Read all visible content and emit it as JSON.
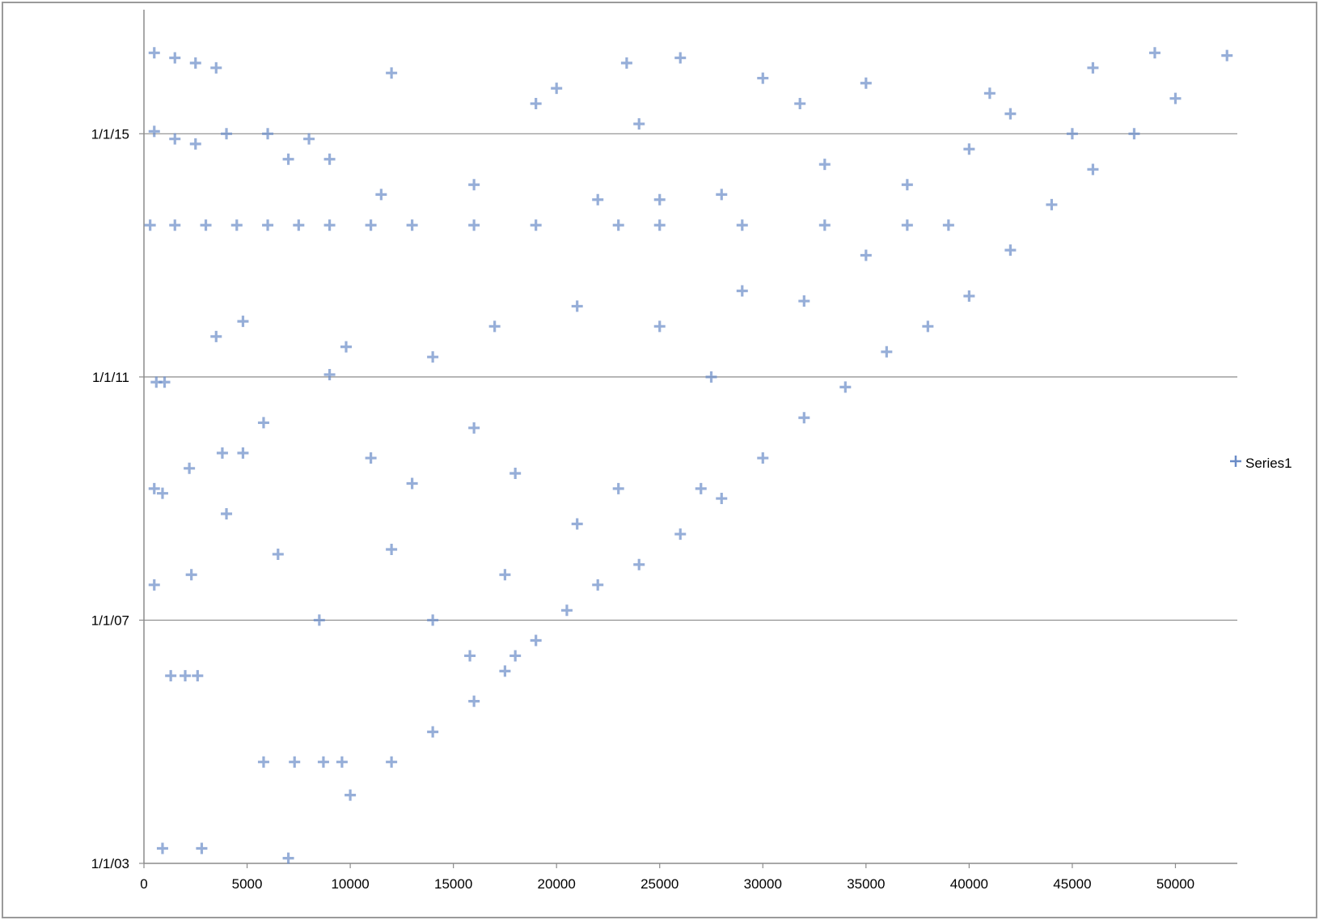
{
  "chart_data": {
    "type": "scatter",
    "title": "",
    "xlabel": "",
    "ylabel": "",
    "x_range": [
      0,
      53000
    ],
    "y_range": [
      "1/1/03",
      "9/1/16"
    ],
    "x_ticks": [
      0,
      5000,
      10000,
      15000,
      20000,
      25000,
      30000,
      35000,
      40000,
      45000,
      50000
    ],
    "x_tick_labels": [
      "0",
      "5000",
      "10000",
      "15000",
      "20000",
      "25000",
      "30000",
      "35000",
      "40000",
      "45000",
      "50000"
    ],
    "y_ticks": [
      "1/1/03",
      "1/1/07",
      "1/1/11",
      "1/1/15"
    ],
    "y_tick_labels": [
      "1/1/03",
      "1/1/07",
      "1/1/11",
      "1/1/15"
    ],
    "gridlines": "horizontal",
    "legend_position": "right",
    "marker": "plus",
    "series": [
      {
        "name": "Series1",
        "color": "#6a8cc7",
        "points": [
          [
            10000,
            "2/15/04"
          ],
          [
            12000,
            "9/1/04"
          ],
          [
            14000,
            "3/1/05"
          ],
          [
            16000,
            "9/1/05"
          ],
          [
            17500,
            "3/1/06"
          ],
          [
            19000,
            "9/1/06"
          ],
          [
            20500,
            "3/1/07"
          ],
          [
            22000,
            "8/1/07"
          ],
          [
            24000,
            "12/1/07"
          ],
          [
            26000,
            "6/1/08"
          ],
          [
            28000,
            "1/1/09"
          ],
          [
            30000,
            "9/1/09"
          ],
          [
            32000,
            "5/1/10"
          ],
          [
            34000,
            "11/1/10"
          ],
          [
            36000,
            "6/1/11"
          ],
          [
            38000,
            "11/1/11"
          ],
          [
            40000,
            "5/1/12"
          ],
          [
            42000,
            "2/1/13"
          ],
          [
            44000,
            "11/1/13"
          ],
          [
            46000,
            "6/1/14"
          ],
          [
            48000,
            "1/1/15"
          ],
          [
            50000,
            "8/1/15"
          ],
          [
            52500,
            "4/15/16"
          ],
          [
            500,
            "5/1/16"
          ],
          [
            1500,
            "4/1/16"
          ],
          [
            2500,
            "3/1/16"
          ],
          [
            3500,
            "2/1/16"
          ],
          [
            500,
            "1/15/15"
          ],
          [
            1500,
            "12/1/14"
          ],
          [
            2500,
            "11/1/14"
          ],
          [
            4000,
            "1/1/15"
          ],
          [
            6000,
            "1/1/15"
          ],
          [
            8000,
            "12/1/14"
          ],
          [
            9000,
            "8/1/14"
          ],
          [
            7000,
            "8/1/14"
          ],
          [
            300,
            "7/1/13"
          ],
          [
            1500,
            "7/1/13"
          ],
          [
            3000,
            "7/1/13"
          ],
          [
            4500,
            "7/1/13"
          ],
          [
            6000,
            "7/1/13"
          ],
          [
            7500,
            "7/1/13"
          ],
          [
            9000,
            "7/1/13"
          ],
          [
            11000,
            "7/1/13"
          ],
          [
            13000,
            "7/1/13"
          ],
          [
            16000,
            "7/1/13"
          ],
          [
            19000,
            "7/1/13"
          ],
          [
            23000,
            "7/1/13"
          ],
          [
            25000,
            "7/1/13"
          ],
          [
            29000,
            "7/1/13"
          ],
          [
            33000,
            "7/1/13"
          ],
          [
            37000,
            "7/1/13"
          ],
          [
            39000,
            "7/1/13"
          ],
          [
            9000,
            "1/15/11"
          ],
          [
            9800,
            "7/1/11"
          ],
          [
            500,
            "3/1/09"
          ],
          [
            900,
            "2/1/09"
          ],
          [
            2200,
            "7/1/09"
          ],
          [
            3800,
            "10/1/09"
          ],
          [
            4800,
            "10/1/09"
          ],
          [
            600,
            "12/1/10"
          ],
          [
            1000,
            "12/1/10"
          ],
          [
            2300,
            "10/1/07"
          ],
          [
            500,
            "8/1/07"
          ],
          [
            4000,
            "10/1/08"
          ],
          [
            1300,
            "2/1/06"
          ],
          [
            2000,
            "2/1/06"
          ],
          [
            2600,
            "2/1/06"
          ],
          [
            5800,
            "9/1/04"
          ],
          [
            7300,
            "9/1/04"
          ],
          [
            8700,
            "9/1/04"
          ],
          [
            9600,
            "9/1/04"
          ],
          [
            900,
            "4/1/03"
          ],
          [
            2800,
            "4/1/03"
          ],
          [
            7000,
            "2/1/03"
          ],
          [
            18000,
            "6/1/06"
          ],
          [
            15800,
            "6/1/06"
          ],
          [
            22000,
            "12/1/13"
          ],
          [
            25000,
            "12/1/13"
          ],
          [
            35000,
            "1/1/13"
          ],
          [
            45000,
            "1/1/15"
          ],
          [
            30000,
            "12/1/15"
          ],
          [
            26000,
            "4/1/16"
          ],
          [
            12000,
            "1/1/16"
          ],
          [
            20000,
            "10/1/15"
          ],
          [
            31800,
            "7/1/15"
          ],
          [
            23400,
            "3/1/16"
          ],
          [
            19000,
            "7/1/15"
          ],
          [
            41000,
            "9/1/15"
          ],
          [
            14000,
            "5/1/11"
          ],
          [
            16000,
            "3/1/10"
          ],
          [
            18000,
            "6/1/09"
          ],
          [
            23000,
            "3/1/09"
          ],
          [
            27000,
            "3/1/09"
          ],
          [
            12000,
            "3/1/08"
          ],
          [
            14000,
            "1/1/07"
          ],
          [
            17500,
            "10/1/07"
          ],
          [
            21000,
            "8/1/08"
          ],
          [
            6500,
            "2/1/08"
          ],
          [
            8500,
            "1/1/07"
          ],
          [
            5800,
            "4/1/10"
          ],
          [
            3500,
            "9/1/11"
          ],
          [
            4800,
            "12/1/11"
          ],
          [
            11000,
            "9/1/09"
          ],
          [
            13000,
            "4/1/09"
          ],
          [
            17000,
            "11/1/11"
          ],
          [
            21000,
            "3/1/12"
          ],
          [
            25000,
            "11/1/11"
          ],
          [
            29000,
            "6/1/12"
          ],
          [
            32000,
            "4/1/12"
          ],
          [
            27500,
            "1/1/11"
          ],
          [
            33000,
            "7/1/14"
          ],
          [
            37000,
            "3/1/14"
          ],
          [
            40000,
            "10/1/14"
          ],
          [
            42000,
            "5/1/15"
          ],
          [
            11500,
            "1/1/14"
          ],
          [
            16000,
            "3/1/14"
          ],
          [
            24000,
            "3/1/15"
          ],
          [
            28000,
            "1/1/14"
          ],
          [
            35000,
            "11/1/15"
          ],
          [
            46000,
            "2/1/16"
          ],
          [
            49000,
            "5/1/16"
          ]
        ]
      }
    ]
  }
}
